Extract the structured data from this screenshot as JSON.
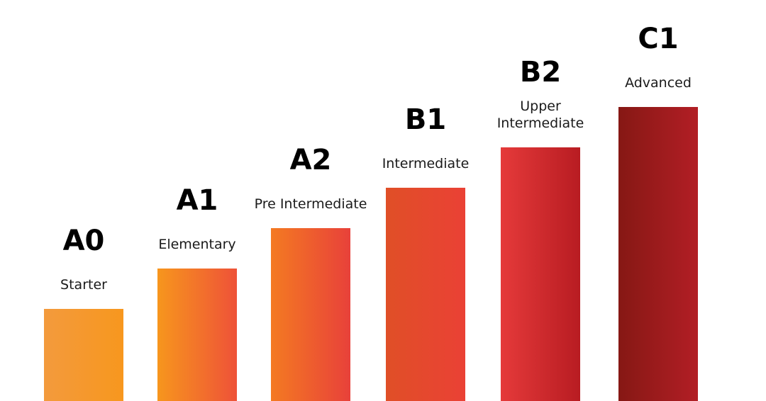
{
  "chart_data": {
    "type": "bar",
    "categories": [
      "A0",
      "A1",
      "A2",
      "B1",
      "B2",
      "C1"
    ],
    "labels": [
      "Starter",
      "Elementary",
      "Pre Intermediate",
      "Intermediate",
      "Upper\nIntermediate",
      "Advanced"
    ],
    "values": [
      1,
      2,
      3,
      4,
      5,
      6
    ],
    "title": "",
    "xlabel": "",
    "ylabel": "",
    "grid": false,
    "legend": "none",
    "colors": [
      [
        "#f39a3d",
        "#f7971e"
      ],
      [
        "#f7961d",
        "#ee5238"
      ],
      [
        "#f47a22",
        "#e8413a"
      ],
      [
        "#e04f27",
        "#ea4135"
      ],
      [
        "#e53a3a",
        "#b81c22"
      ],
      [
        "#861814",
        "#b21e25"
      ]
    ]
  }
}
